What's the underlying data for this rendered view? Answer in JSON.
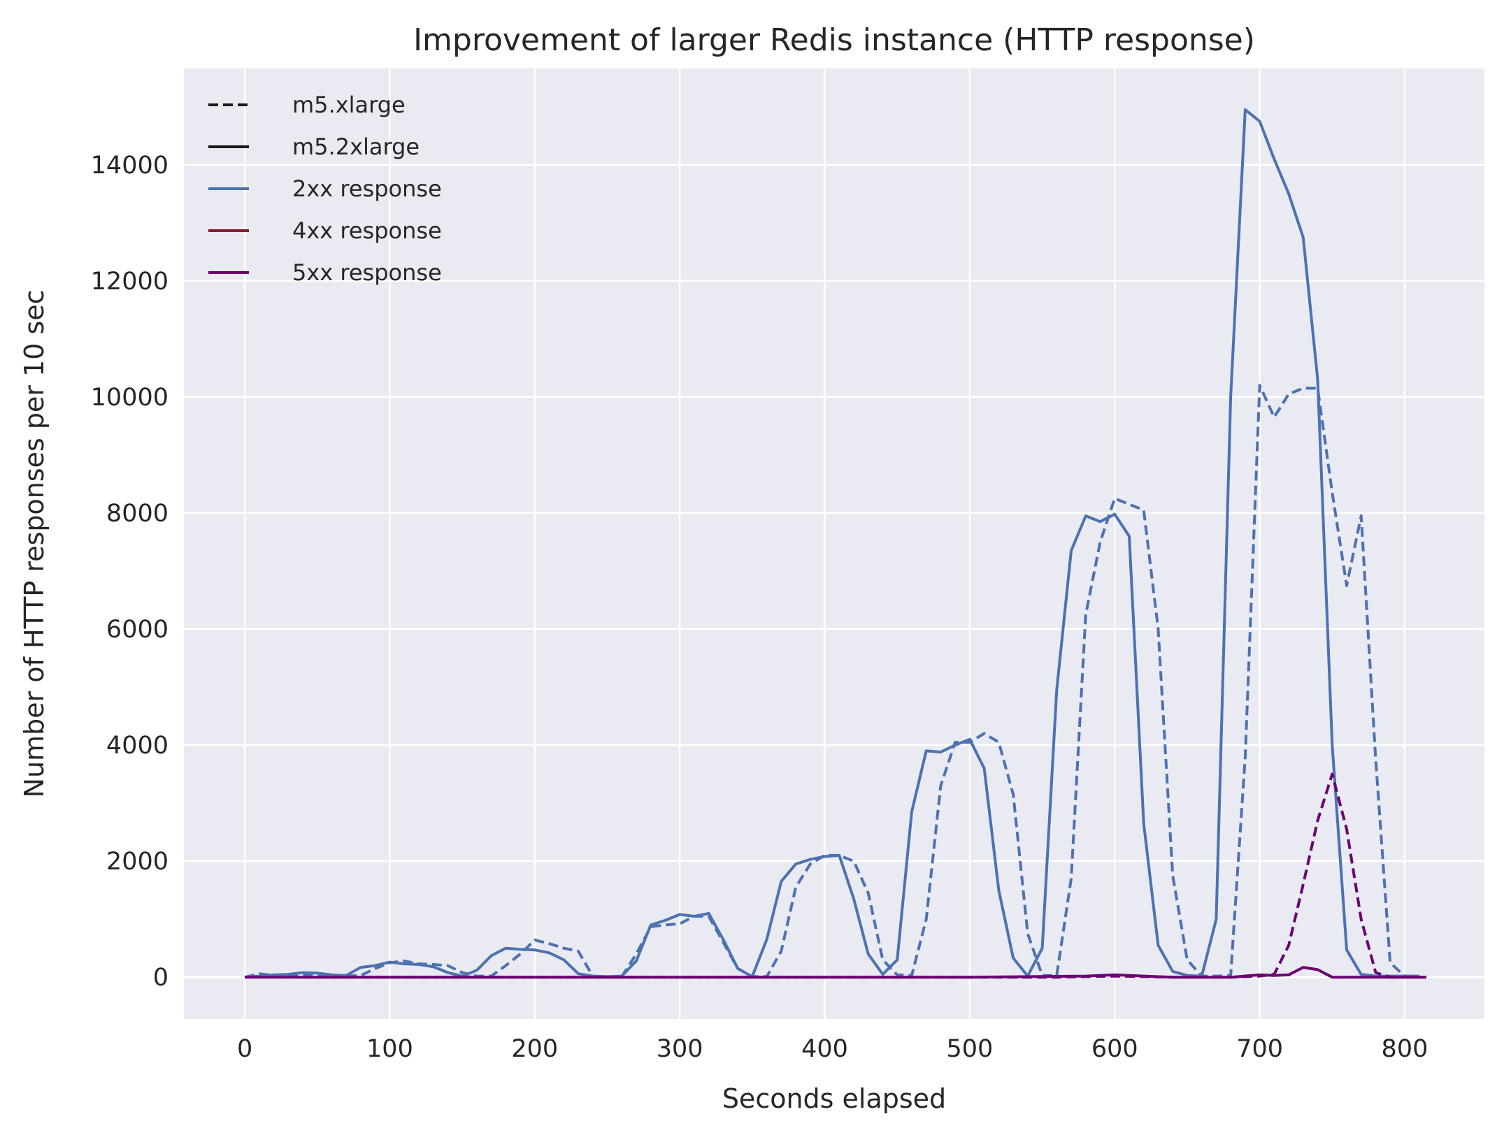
{
  "chart_data": {
    "type": "line",
    "title": "Improvement of larger Redis instance (HTTP response)",
    "xlabel": "Seconds elapsed",
    "ylabel": "Number of HTTP responses per 10 sec",
    "xlim": [
      -42,
      855
    ],
    "ylim": [
      -720,
      15660
    ],
    "xticks": [
      0,
      100,
      200,
      300,
      400,
      500,
      600,
      700,
      800
    ],
    "yticks": [
      0,
      2000,
      4000,
      6000,
      8000,
      10000,
      12000,
      14000
    ],
    "xtick_labels": [
      "0",
      "100",
      "200",
      "300",
      "400",
      "500",
      "600",
      "700",
      "800"
    ],
    "ytick_labels": [
      "0",
      "2000",
      "4000",
      "6000",
      "8000",
      "10000",
      "12000",
      "14000"
    ],
    "grid": true,
    "legend_position": "top-left",
    "background": "#eaeaf2",
    "legend": [
      {
        "label": "m5.xlarge",
        "style": "dashed",
        "color": "#1a1a1a"
      },
      {
        "label": "m5.2xlarge",
        "style": "solid",
        "color": "#1a1a1a"
      },
      {
        "label": "2xx response",
        "style": "solid",
        "color": "#4c72b0"
      },
      {
        "label": "4xx response",
        "style": "solid",
        "color": "#8c1c2f"
      },
      {
        "label": "5xx response",
        "style": "solid",
        "color": "#6a0572"
      }
    ],
    "series": [
      {
        "style": "dashed",
        "color": "#4c72b0",
        "x": [
          0,
          10,
          20,
          30,
          40,
          50,
          60,
          70,
          80,
          90,
          100,
          110,
          120,
          130,
          140,
          150,
          160,
          170,
          180,
          190,
          200,
          210,
          220,
          230,
          240,
          250,
          260,
          270,
          280,
          290,
          300,
          310,
          320,
          330,
          340,
          350,
          360,
          370,
          380,
          390,
          400,
          410,
          420,
          430,
          440,
          450,
          460,
          470,
          480,
          490,
          500,
          510,
          520,
          530,
          540,
          550,
          560,
          570,
          580,
          590,
          600,
          610,
          620,
          630,
          640,
          650,
          660,
          670,
          680,
          690,
          700,
          710,
          720,
          730,
          740,
          750,
          760,
          770,
          780,
          790,
          800,
          810
        ],
        "y": [
          0,
          60,
          30,
          20,
          30,
          30,
          20,
          20,
          30,
          150,
          250,
          280,
          230,
          220,
          200,
          80,
          20,
          20,
          200,
          400,
          640,
          580,
          500,
          450,
          20,
          10,
          10,
          400,
          870,
          900,
          920,
          1050,
          1050,
          600,
          150,
          10,
          10,
          450,
          1550,
          1950,
          2100,
          2100,
          2000,
          1450,
          300,
          40,
          30,
          1000,
          3300,
          4050,
          4050,
          4200,
          4050,
          3150,
          750,
          30,
          30,
          1700,
          6250,
          7500,
          8250,
          8150,
          8050,
          6000,
          1750,
          300,
          20,
          20,
          30,
          3800,
          10200,
          9650,
          10050,
          10150,
          10150,
          8350,
          6750,
          7950,
          3750,
          250,
          20,
          20
        ]
      },
      {
        "style": "solid",
        "color": "#4c72b0",
        "x": [
          0,
          10,
          20,
          30,
          40,
          50,
          60,
          70,
          80,
          90,
          100,
          110,
          120,
          130,
          140,
          150,
          160,
          170,
          180,
          190,
          200,
          210,
          220,
          230,
          240,
          250,
          260,
          270,
          280,
          290,
          300,
          310,
          320,
          330,
          340,
          350,
          360,
          370,
          380,
          390,
          400,
          410,
          420,
          430,
          440,
          450,
          460,
          470,
          480,
          490,
          500,
          510,
          520,
          530,
          540,
          550,
          560,
          570,
          580,
          590,
          600,
          610,
          620,
          630,
          640,
          650,
          660,
          670,
          680,
          690,
          700,
          710,
          720,
          730,
          740,
          750,
          760,
          770,
          780,
          790,
          800,
          810
        ],
        "y": [
          0,
          20,
          40,
          50,
          80,
          70,
          40,
          30,
          170,
          200,
          260,
          230,
          220,
          180,
          80,
          20,
          120,
          370,
          500,
          480,
          470,
          420,
          300,
          60,
          20,
          10,
          20,
          280,
          900,
          980,
          1080,
          1050,
          1100,
          650,
          150,
          10,
          650,
          1650,
          1950,
          2030,
          2080,
          2100,
          1350,
          400,
          50,
          300,
          2850,
          3900,
          3880,
          4000,
          4100,
          3600,
          1500,
          330,
          20,
          500,
          4950,
          7350,
          7950,
          7850,
          7980,
          7600,
          2650,
          550,
          100,
          30,
          20,
          1000,
          10000,
          14950,
          14750,
          14100,
          13500,
          12750,
          10300,
          4000,
          470,
          50,
          20,
          20,
          20,
          20
        ]
      },
      {
        "style": "dashed",
        "color": "#6a0572",
        "x": [
          40,
          100,
          200,
          300,
          400,
          500,
          560,
          580,
          600,
          620,
          640,
          660,
          680,
          700,
          710,
          720,
          730,
          740,
          750,
          760,
          770,
          780,
          790,
          800,
          815
        ],
        "y": [
          0,
          0,
          0,
          0,
          0,
          0,
          0,
          10,
          20,
          10,
          0,
          0,
          0,
          20,
          50,
          550,
          1600,
          2700,
          3500,
          2550,
          1000,
          80,
          0,
          0,
          0
        ]
      },
      {
        "style": "solid",
        "color": "#6a0572",
        "x": [
          0,
          100,
          200,
          300,
          400,
          500,
          580,
          600,
          620,
          640,
          660,
          680,
          700,
          710,
          720,
          730,
          740,
          750,
          760,
          780,
          800,
          815
        ],
        "y": [
          0,
          0,
          0,
          0,
          0,
          0,
          20,
          40,
          20,
          0,
          0,
          0,
          40,
          30,
          40,
          170,
          130,
          0,
          0,
          0,
          0,
          0
        ]
      }
    ]
  }
}
